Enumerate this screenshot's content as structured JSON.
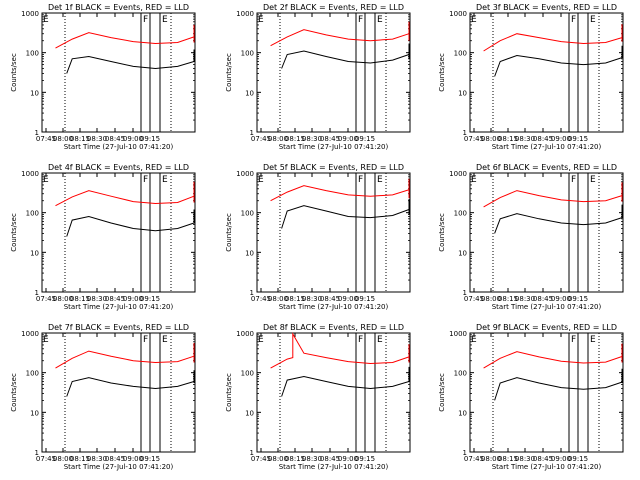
{
  "figure": {
    "series_colors": {
      "events": "#000000",
      "lld": "#ff0000"
    },
    "time_window": {
      "start": "07:41:20",
      "end": "08:22:00"
    },
    "marker_labels": [
      "F",
      "E"
    ]
  },
  "chart_data": [
    {
      "type": "line",
      "title": "Det 1f BLACK = Events, RED = LLD",
      "xlabel": "Start Time (27-Jul-10 07:41:20)",
      "ylabel": "Counts/sec",
      "xticks": [
        "07:45",
        "08:00",
        "08:15",
        "08:30",
        "08:45",
        "09:00",
        "09:15"
      ],
      "yticks": [
        "1",
        "10",
        "100",
        "1000"
      ],
      "ylim": [
        1,
        1000
      ],
      "yscale": "log",
      "series": [
        {
          "color": "#000000",
          "x": [
            "07:44",
            "07:45",
            "07:48",
            "07:52",
            "07:56",
            "08:00",
            "08:04",
            "08:08",
            "08:11",
            "08:13",
            "08:15",
            "08:18",
            "08:20"
          ],
          "y": [
            30,
            70,
            80,
            60,
            45,
            40,
            45,
            60,
            90,
            120,
            110,
            90,
            60
          ]
        },
        {
          "color": "#ff0000",
          "x": [
            "07:42",
            "07:45",
            "07:48",
            "07:52",
            "07:56",
            "08:00",
            "08:04",
            "08:08",
            "08:11",
            "08:13",
            "08:15",
            "08:18",
            "08:22"
          ],
          "y": [
            130,
            220,
            320,
            240,
            190,
            170,
            180,
            250,
            380,
            500,
            420,
            300,
            180
          ]
        }
      ]
    },
    {
      "type": "line",
      "title": "Det 2f BLACK = Events, RED = LLD",
      "xlabel": "Start Time (27-Jul-10 07:41:20)",
      "ylabel": "Counts/sec",
      "xticks": [
        "07:45",
        "08:00",
        "08:15",
        "08:30",
        "08:45",
        "09:00",
        "09:15"
      ],
      "yticks": [
        "1",
        "10",
        "100",
        "1000"
      ],
      "ylim": [
        1,
        1000
      ],
      "yscale": "log",
      "series": [
        {
          "color": "#000000",
          "x": [
            "07:44",
            "07:45",
            "07:48",
            "07:52",
            "07:56",
            "08:00",
            "08:04",
            "08:08",
            "08:11",
            "08:13",
            "08:15",
            "08:18",
            "08:20"
          ],
          "y": [
            40,
            90,
            110,
            80,
            60,
            55,
            65,
            90,
            130,
            170,
            150,
            110,
            70
          ]
        },
        {
          "color": "#ff0000",
          "x": [
            "07:42",
            "07:45",
            "07:48",
            "07:52",
            "07:56",
            "08:00",
            "08:04",
            "08:08",
            "08:11",
            "08:13",
            "08:15",
            "08:18",
            "08:22"
          ],
          "y": [
            150,
            250,
            380,
            280,
            220,
            200,
            220,
            300,
            450,
            600,
            520,
            360,
            200
          ]
        }
      ]
    },
    {
      "type": "line",
      "title": "Det 3f BLACK = Events, RED = LLD",
      "xlabel": "Start Time (27-Jul-10 07:41:20)",
      "ylabel": "Counts/sec",
      "xticks": [
        "07:45",
        "08:00",
        "08:15",
        "08:30",
        "08:45",
        "09:00",
        "09:15"
      ],
      "yticks": [
        "1",
        "10",
        "100",
        "1000"
      ],
      "ylim": [
        1,
        1000
      ],
      "yscale": "log",
      "series": [
        {
          "color": "#000000",
          "x": [
            "07:44",
            "07:45",
            "07:48",
            "07:52",
            "07:56",
            "08:00",
            "08:04",
            "08:08",
            "08:11",
            "08:13",
            "08:15",
            "08:18",
            "08:20"
          ],
          "y": [
            25,
            60,
            85,
            70,
            55,
            50,
            55,
            75,
            110,
            150,
            140,
            110,
            80
          ]
        },
        {
          "color": "#ff0000",
          "x": [
            "07:42",
            "07:45",
            "07:48",
            "07:52",
            "07:56",
            "08:00",
            "08:04",
            "08:08",
            "08:11",
            "08:13",
            "08:15",
            "08:18",
            "08:22"
          ],
          "y": [
            110,
            200,
            300,
            240,
            190,
            170,
            180,
            240,
            360,
            520,
            460,
            320,
            190
          ]
        }
      ]
    },
    {
      "type": "line",
      "title": "Det 4f BLACK = Events, RED = LLD",
      "xlabel": "Start Time (27-Jul-10 07:41:20)",
      "ylabel": "Counts/sec",
      "xticks": [
        "07:45",
        "08:00",
        "08:15",
        "08:30",
        "08:45",
        "09:00",
        "09:15"
      ],
      "yticks": [
        "1",
        "10",
        "100",
        "1000"
      ],
      "ylim": [
        1,
        1000
      ],
      "yscale": "log",
      "series": [
        {
          "color": "#000000",
          "x": [
            "07:44",
            "07:45",
            "07:48",
            "07:52",
            "07:56",
            "08:00",
            "08:04",
            "08:08",
            "08:11",
            "08:13",
            "08:15",
            "08:18",
            "08:20"
          ],
          "y": [
            25,
            65,
            80,
            55,
            40,
            35,
            40,
            55,
            85,
            120,
            110,
            85,
            55
          ]
        },
        {
          "color": "#ff0000",
          "x": [
            "07:42",
            "07:45",
            "07:48",
            "07:52",
            "07:56",
            "08:00",
            "08:04",
            "08:08",
            "08:11",
            "08:13",
            "08:15",
            "08:18",
            "08:22"
          ],
          "y": [
            150,
            250,
            360,
            260,
            190,
            170,
            180,
            260,
            420,
            600,
            500,
            330,
            180
          ]
        }
      ]
    },
    {
      "type": "line",
      "title": "Det 5f BLACK = Events, RED = LLD",
      "xlabel": "Start Time (27-Jul-10 07:41:20)",
      "ylabel": "Counts/sec",
      "xticks": [
        "07:45",
        "08:00",
        "08:15",
        "08:30",
        "08:45",
        "09:00",
        "09:15"
      ],
      "yticks": [
        "1",
        "10",
        "100",
        "1000"
      ],
      "ylim": [
        1,
        1000
      ],
      "yscale": "log",
      "series": [
        {
          "color": "#000000",
          "x": [
            "07:44",
            "07:45",
            "07:48",
            "07:52",
            "07:56",
            "08:00",
            "08:04",
            "08:08",
            "08:11",
            "08:13",
            "08:15",
            "08:18",
            "08:20"
          ],
          "y": [
            40,
            110,
            150,
            110,
            80,
            75,
            85,
            120,
            170,
            220,
            200,
            150,
            90
          ]
        },
        {
          "color": "#ff0000",
          "x": [
            "07:42",
            "07:45",
            "07:48",
            "07:52",
            "07:56",
            "08:00",
            "08:04",
            "08:08",
            "08:11",
            "08:13",
            "08:15",
            "08:18",
            "08:22"
          ],
          "y": [
            200,
            330,
            480,
            360,
            280,
            260,
            280,
            380,
            560,
            720,
            620,
            420,
            230
          ]
        }
      ]
    },
    {
      "type": "line",
      "title": "Det 6f BLACK = Events, RED = LLD",
      "xlabel": "Start Time (27-Jul-10 07:41:20)",
      "ylabel": "Counts/sec",
      "xticks": [
        "07:45",
        "08:00",
        "08:15",
        "08:30",
        "08:45",
        "09:00",
        "09:15"
      ],
      "yticks": [
        "1",
        "10",
        "100",
        "1000"
      ],
      "ylim": [
        1,
        1000
      ],
      "yscale": "log",
      "series": [
        {
          "color": "#000000",
          "x": [
            "07:44",
            "07:45",
            "07:48",
            "07:52",
            "07:56",
            "08:00",
            "08:04",
            "08:08",
            "08:11",
            "08:13",
            "08:15",
            "08:18",
            "08:20"
          ],
          "y": [
            30,
            70,
            95,
            70,
            55,
            50,
            55,
            75,
            110,
            160,
            150,
            115,
            75
          ]
        },
        {
          "color": "#ff0000",
          "x": [
            "07:42",
            "07:45",
            "07:48",
            "07:52",
            "07:56",
            "08:00",
            "08:04",
            "08:08",
            "08:11",
            "08:13",
            "08:15",
            "08:18",
            "08:22"
          ],
          "y": [
            140,
            240,
            360,
            270,
            210,
            190,
            200,
            270,
            400,
            580,
            500,
            340,
            190
          ]
        }
      ]
    },
    {
      "type": "line",
      "title": "Det 7f BLACK = Events, RED = LLD",
      "xlabel": "Start Time (27-Jul-10 07:41:20)",
      "ylabel": "Counts/sec",
      "xticks": [
        "07:45",
        "08:00",
        "08:15",
        "08:30",
        "08:45",
        "09:00",
        "09:15"
      ],
      "yticks": [
        "1",
        "10",
        "100",
        "1000"
      ],
      "ylim": [
        1,
        1000
      ],
      "yscale": "log",
      "series": [
        {
          "color": "#000000",
          "x": [
            "07:44",
            "07:45",
            "07:48",
            "07:52",
            "07:56",
            "08:00",
            "08:04",
            "08:08",
            "08:11",
            "08:13",
            "08:15",
            "08:18",
            "08:20"
          ],
          "y": [
            25,
            60,
            75,
            55,
            45,
            40,
            45,
            60,
            85,
            115,
            105,
            80,
            55
          ]
        },
        {
          "color": "#ff0000",
          "x": [
            "07:42",
            "07:45",
            "07:48",
            "07:52",
            "07:56",
            "08:00",
            "08:04",
            "08:08",
            "08:11",
            "08:13",
            "08:15",
            "08:18",
            "08:22"
          ],
          "y": [
            130,
            230,
            350,
            260,
            200,
            180,
            190,
            260,
            400,
            560,
            480,
            320,
            180
          ]
        }
      ]
    },
    {
      "type": "line",
      "title": "Det 8f BLACK = Events, RED = LLD",
      "xlabel": "Start Time (27-Jul-10 07:41:20)",
      "ylabel": "Counts/sec",
      "xticks": [
        "07:45",
        "08:00",
        "08:15",
        "08:30",
        "08:45",
        "09:00",
        "09:15"
      ],
      "yticks": [
        "1",
        "10",
        "100",
        "1000"
      ],
      "ylim": [
        1,
        1000
      ],
      "yscale": "log",
      "series": [
        {
          "color": "#000000",
          "x": [
            "07:44",
            "07:45",
            "07:48",
            "07:52",
            "07:56",
            "08:00",
            "08:04",
            "08:08",
            "08:11",
            "08:13",
            "08:15",
            "08:18",
            "08:20"
          ],
          "y": [
            25,
            65,
            80,
            60,
            45,
            40,
            45,
            60,
            90,
            140,
            130,
            100,
            65
          ]
        },
        {
          "color": "#ff0000",
          "x": [
            "07:42",
            "07:45",
            "07:46",
            "07:46",
            "07:48",
            "07:52",
            "07:56",
            "08:00",
            "08:04",
            "08:08",
            "08:11",
            "08:13",
            "08:15",
            "08:18",
            "08:22"
          ],
          "y": [
            130,
            220,
            240,
            1000,
            310,
            240,
            190,
            170,
            180,
            250,
            380,
            520,
            440,
            300,
            180
          ]
        }
      ]
    },
    {
      "type": "line",
      "title": "Det 9f BLACK = Events, RED = LLD",
      "xlabel": "Start Time (27-Jul-10 07:41:20)",
      "ylabel": "Counts/sec",
      "xticks": [
        "07:45",
        "08:00",
        "08:15",
        "08:30",
        "08:45",
        "09:00",
        "09:15"
      ],
      "yticks": [
        "1",
        "10",
        "100",
        "1000"
      ],
      "ylim": [
        1,
        1000
      ],
      "yscale": "log",
      "series": [
        {
          "color": "#000000",
          "x": [
            "07:44",
            "07:45",
            "07:48",
            "07:52",
            "07:56",
            "08:00",
            "08:04",
            "08:08",
            "08:11",
            "08:13",
            "08:15",
            "08:18",
            "08:20"
          ],
          "y": [
            20,
            55,
            75,
            55,
            42,
            38,
            42,
            58,
            85,
            125,
            115,
            85,
            55
          ]
        },
        {
          "color": "#ff0000",
          "x": [
            "07:42",
            "07:45",
            "07:48",
            "07:52",
            "07:56",
            "08:00",
            "08:04",
            "08:08",
            "08:11",
            "08:13",
            "08:15",
            "08:18",
            "08:22"
          ],
          "y": [
            130,
            230,
            340,
            250,
            195,
            175,
            185,
            255,
            390,
            540,
            470,
            320,
            180
          ]
        }
      ]
    }
  ]
}
